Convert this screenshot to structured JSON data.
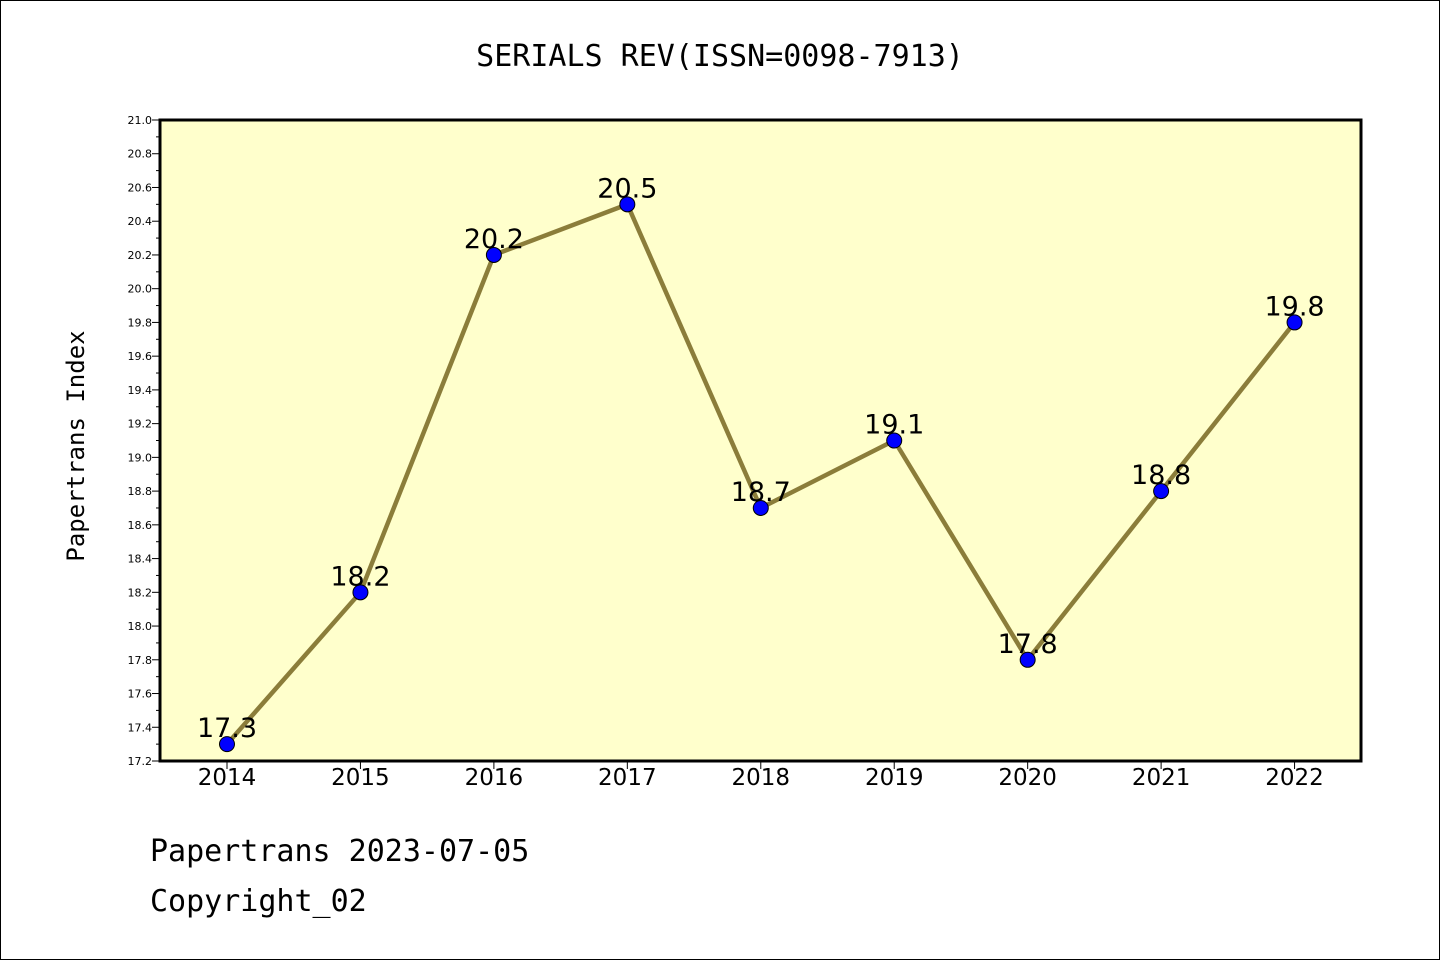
{
  "chart_data": {
    "type": "line",
    "title": "SERIALS REV(ISSN=0098-7913)",
    "xlabel": "",
    "ylabel": "Papertrans Index",
    "categories": [
      "2014",
      "2015",
      "2016",
      "2017",
      "2018",
      "2019",
      "2020",
      "2021",
      "2022"
    ],
    "series": [
      {
        "values": [
          17.3,
          18.2,
          20.2,
          20.5,
          18.7,
          19.1,
          17.8,
          18.8,
          19.8
        ],
        "labels": [
          "17.3",
          "18.2",
          "20.2",
          "20.5",
          "18.7",
          "19.1",
          "17.8",
          "18.8",
          "19.8"
        ]
      }
    ],
    "ylim": [
      17.2,
      21.0
    ],
    "yticks": [
      "17.2",
      "17.4",
      "17.6",
      "17.8",
      "18.0",
      "18.2",
      "18.4",
      "18.6",
      "18.8",
      "19.0",
      "19.2",
      "19.4",
      "19.6",
      "19.8",
      "20.0",
      "20.2",
      "20.4",
      "20.6",
      "20.8",
      "21.0"
    ],
    "grid": false,
    "legend": "none",
    "colors": {
      "plot_background": "#ffffcc",
      "line": "#8b7d3a",
      "marker": "#0000ff"
    }
  },
  "footer": {
    "line1": "Papertrans 2023-07-05",
    "line2": "Copyright_02"
  }
}
